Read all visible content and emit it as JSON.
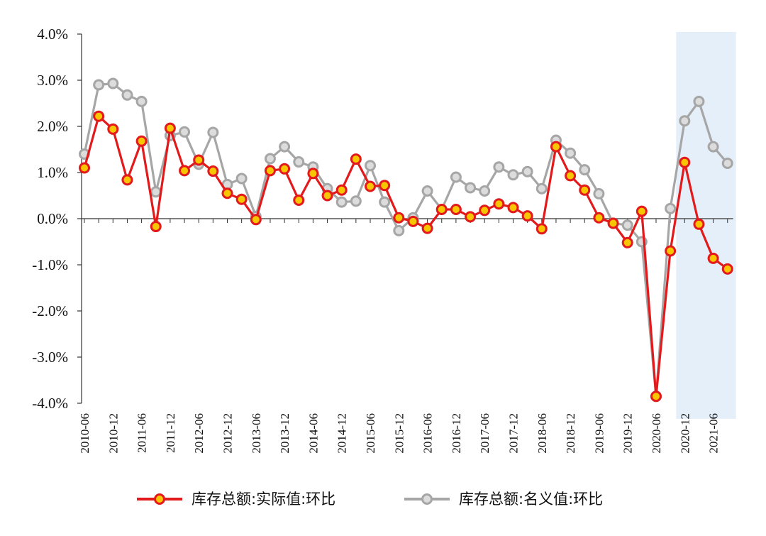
{
  "chart_data": {
    "type": "line",
    "y_axis": {
      "ylim": [
        -4.0,
        4.0
      ],
      "ticks": [
        4.0,
        3.0,
        2.0,
        1.0,
        0.0,
        -1.0,
        -2.0,
        -3.0,
        -4.0
      ],
      "tick_labels": [
        "4.0%",
        "3.0%",
        "2.0%",
        "1.0%",
        "0.0%",
        "-1.0%",
        "-2.0%",
        "-3.0%",
        "-4.0%"
      ]
    },
    "x_axis": {
      "tick_labels": [
        "2010-06",
        "2010-12",
        "2011-06",
        "2011-12",
        "2012-06",
        "2012-12",
        "2013-06",
        "2013-12",
        "2014-06",
        "2014-12",
        "2015-06",
        "2015-12",
        "2016-06",
        "2016-12",
        "2017-06",
        "2017-12",
        "2018-06",
        "2018-12",
        "2019-06",
        "2019-12",
        "2020-06",
        "2020-12",
        "2021-06"
      ]
    },
    "x": [
      "2010-06",
      "2010-09",
      "2010-12",
      "2011-03",
      "2011-06",
      "2011-09",
      "2011-12",
      "2012-03",
      "2012-06",
      "2012-09",
      "2012-12",
      "2013-03",
      "2013-06",
      "2013-09",
      "2013-12",
      "2014-03",
      "2014-06",
      "2014-09",
      "2014-12",
      "2015-03",
      "2015-06",
      "2015-09",
      "2015-12",
      "2016-03",
      "2016-06",
      "2016-09",
      "2016-12",
      "2017-03",
      "2017-06",
      "2017-09",
      "2017-12",
      "2018-03",
      "2018-06",
      "2018-09",
      "2018-12",
      "2019-03",
      "2019-06",
      "2019-09",
      "2019-12",
      "2020-03",
      "2020-06",
      "2020-09",
      "2020-12",
      "2021-03",
      "2021-06",
      "2021-09"
    ],
    "series": [
      {
        "name": "库存总额:名义值:环比",
        "color": "#a6a6a6",
        "values": [
          1.4,
          2.9,
          2.93,
          2.68,
          2.54,
          0.58,
          1.8,
          1.88,
          1.18,
          1.87,
          0.74,
          0.87,
          0.05,
          1.3,
          1.56,
          1.23,
          1.12,
          0.65,
          0.36,
          0.38,
          1.15,
          0.36,
          -0.26,
          0.02,
          0.6,
          0.2,
          0.9,
          0.67,
          0.6,
          1.12,
          0.95,
          1.02,
          0.65,
          1.7,
          1.42,
          1.06,
          0.54,
          -0.1,
          -0.14,
          -0.5,
          -3.85,
          0.22,
          2.12,
          2.54,
          1.56,
          1.2
        ]
      },
      {
        "name": "库存总额:实际值:环比",
        "color": "#e31a1c",
        "values": [
          1.1,
          2.22,
          1.94,
          0.84,
          1.68,
          -0.17,
          1.96,
          1.04,
          1.27,
          1.03,
          0.55,
          0.42,
          -0.02,
          1.04,
          1.08,
          0.4,
          0.98,
          0.5,
          0.62,
          1.29,
          0.7,
          0.72,
          0.02,
          -0.06,
          -0.21,
          0.2,
          0.2,
          0.04,
          0.18,
          0.32,
          0.24,
          0.06,
          -0.22,
          1.56,
          0.93,
          0.62,
          0.02,
          -0.1,
          -0.52,
          0.16,
          -3.85,
          -0.7,
          1.22,
          -0.12,
          -0.86,
          -1.09
        ]
      }
    ],
    "highlight": {
      "from": "2020-12",
      "to": "2021-09",
      "color": "#e5eff9"
    },
    "grid": false,
    "legend": {
      "position": "bottom",
      "entries": [
        "库存总额:实际值:环比",
        "库存总额:名义值:环比"
      ]
    }
  }
}
